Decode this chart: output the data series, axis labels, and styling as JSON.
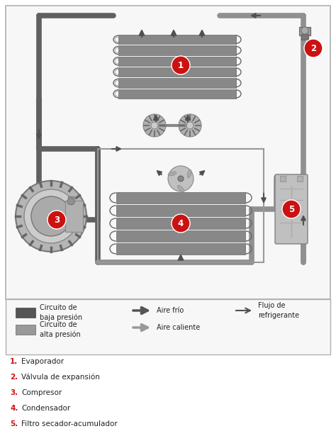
{
  "bg_color": "#ffffff",
  "diagram_bg": "#f0f0f0",
  "lp_color": "#606060",
  "hp_color": "#909090",
  "red_color": "#cc1111",
  "dark_gray": "#505050",
  "med_gray": "#808080",
  "light_gray": "#aaaaaa",
  "coil_face": "#909090",
  "coil_edge": "#606060",
  "pipe_lw": 5.0,
  "legend_lp_color": "#555555",
  "legend_hp_color": "#999999",
  "text_color": "#222222",
  "numbered_items": [
    {
      "num": "1.",
      "label": "Evaporador"
    },
    {
      "num": "2.",
      "label": "Válvula de expansión"
    },
    {
      "num": "3.",
      "label": "Compresor"
    },
    {
      "num": "4.",
      "label": "Condensador"
    },
    {
      "num": "5.",
      "label": "Filtro secador-acumulador"
    }
  ],
  "flow_label": "Flujo de\nrefrigerante"
}
